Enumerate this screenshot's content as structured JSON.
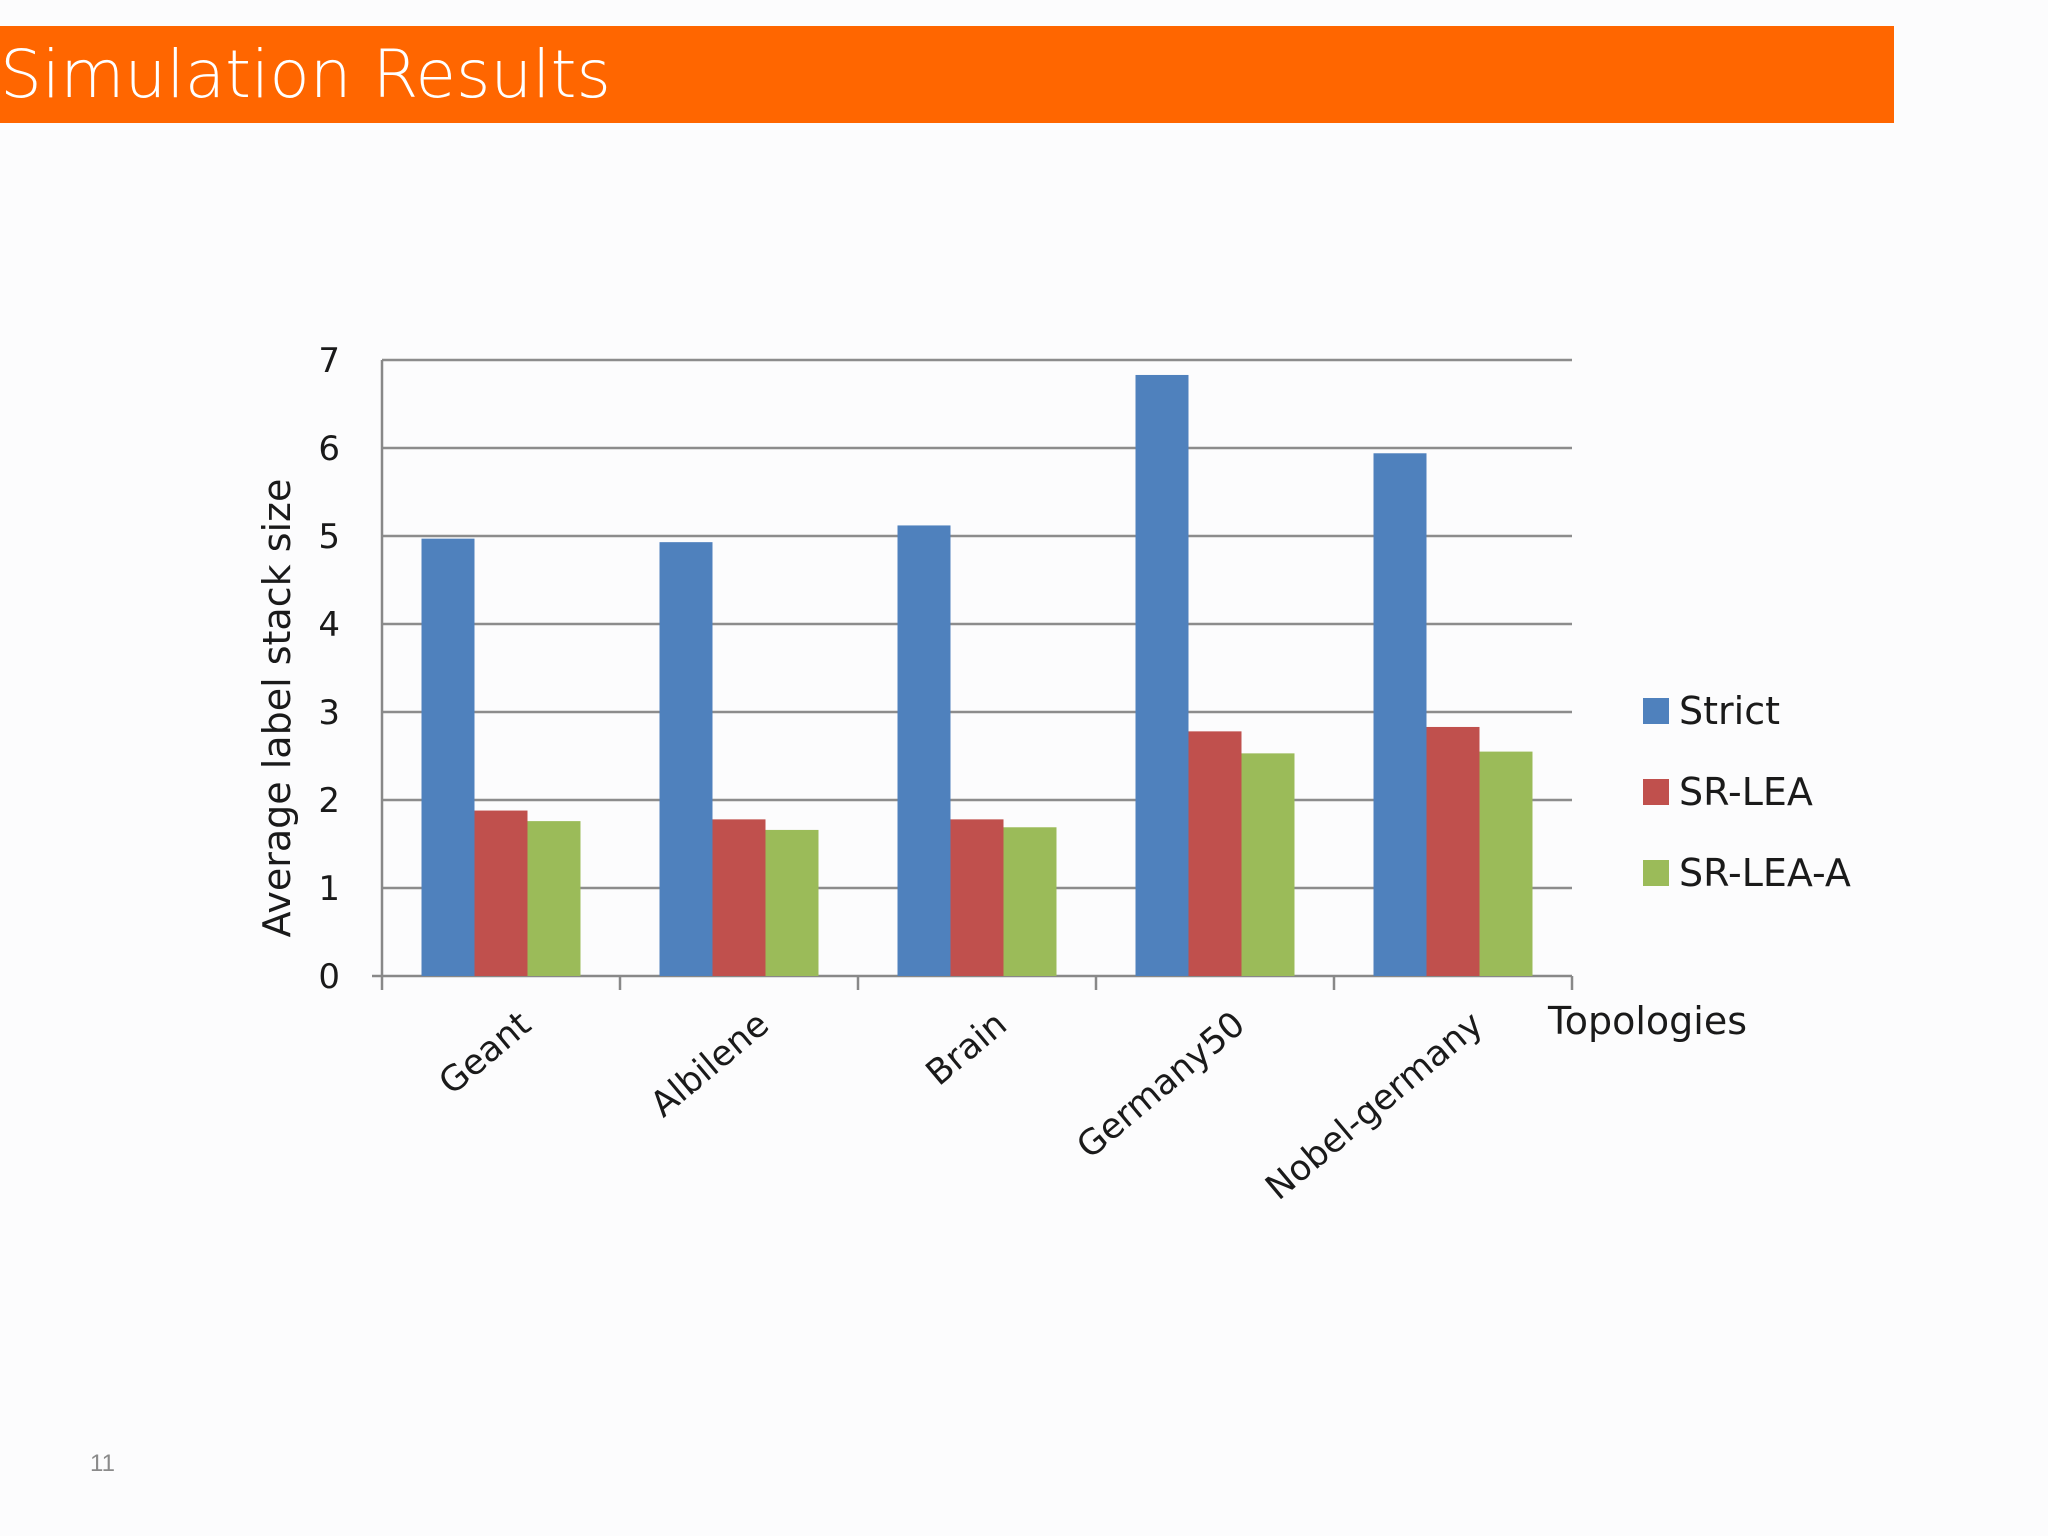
{
  "slide": {
    "title": "Simulation Results",
    "page_number": "11"
  },
  "colors": {
    "title_bar": "#ff6600",
    "grid": "#8c8c8c",
    "axis": "#888888",
    "text": "#1a1a1a"
  },
  "chart_data": {
    "type": "bar",
    "title": "",
    "xlabel": "Topologies",
    "ylabel": "Average label stack size",
    "ylim": [
      0,
      7
    ],
    "yticks": [
      "0",
      "1",
      "2",
      "3",
      "4",
      "5",
      "6",
      "7"
    ],
    "grid": "horizontal",
    "legend_position": "right",
    "categories": [
      "Geant",
      "Albilene",
      "Brain",
      "Germany50",
      "Nobel-germany"
    ],
    "series": [
      {
        "name": "Strict",
        "color": "#4f81bd",
        "values": [
          4.97,
          4.93,
          5.12,
          6.83,
          5.94
        ]
      },
      {
        "name": "SR-LEA",
        "color": "#c0504d",
        "values": [
          1.88,
          1.78,
          1.78,
          2.78,
          2.83
        ]
      },
      {
        "name": "SR-LEA-A",
        "color": "#9bbb59",
        "values": [
          1.76,
          1.66,
          1.69,
          2.53,
          2.55
        ]
      }
    ]
  }
}
